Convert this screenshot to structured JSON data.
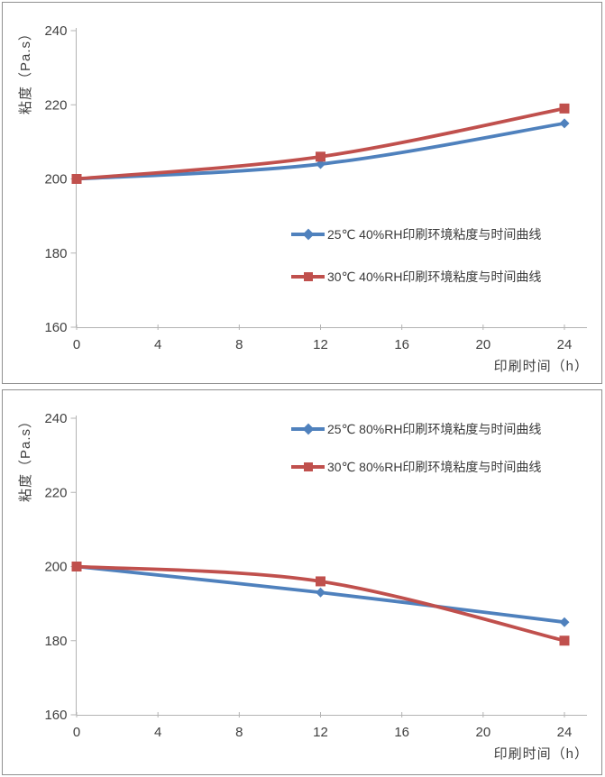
{
  "page": {
    "background": "#ffffff",
    "panel_border": "#8f8f8f"
  },
  "axis_style": {
    "line_color": "#b3b3b3",
    "tick_label_color": "#404040",
    "title_color": "#404040"
  },
  "chart_data": [
    {
      "id": "viscosity-vs-time-40rh",
      "type": "line",
      "title": "",
      "xlabel": "印刷时间（h）",
      "ylabel": "粘度（Pa.s）",
      "x": [
        0,
        12,
        24
      ],
      "x_ticks": [
        0,
        4,
        8,
        12,
        16,
        20,
        24
      ],
      "y_ticks": [
        160,
        180,
        200,
        220,
        240
      ],
      "xlim": [
        0,
        24
      ],
      "ylim": [
        160,
        240
      ],
      "grid": false,
      "legend_position": "center-right",
      "series": [
        {
          "name": "25℃ 40%RH印刷环境粘度与时间曲线",
          "values": [
            200,
            204,
            215
          ],
          "color": "#4f81bd",
          "marker": "diamond"
        },
        {
          "name": "30℃ 40%RH印刷环境粘度与时间曲线",
          "values": [
            200,
            206,
            219
          ],
          "color": "#c0504d",
          "marker": "square"
        }
      ]
    },
    {
      "id": "viscosity-vs-time-80rh",
      "type": "line",
      "title": "",
      "xlabel": "印刷时间（h）",
      "ylabel": "粘度（Pa.s）",
      "x": [
        0,
        12,
        24
      ],
      "x_ticks": [
        0,
        4,
        8,
        12,
        16,
        20,
        24
      ],
      "y_ticks": [
        160,
        180,
        200,
        220,
        240
      ],
      "xlim": [
        0,
        24
      ],
      "ylim": [
        160,
        240
      ],
      "grid": false,
      "legend_position": "top-right",
      "series": [
        {
          "name": "25℃ 80%RH印刷环境粘度与时间曲线",
          "values": [
            200,
            193,
            185
          ],
          "color": "#4f81bd",
          "marker": "diamond"
        },
        {
          "name": "30℃ 80%RH印刷环境粘度与时间曲线",
          "values": [
            200,
            196,
            180
          ],
          "color": "#c0504d",
          "marker": "square"
        }
      ]
    }
  ]
}
